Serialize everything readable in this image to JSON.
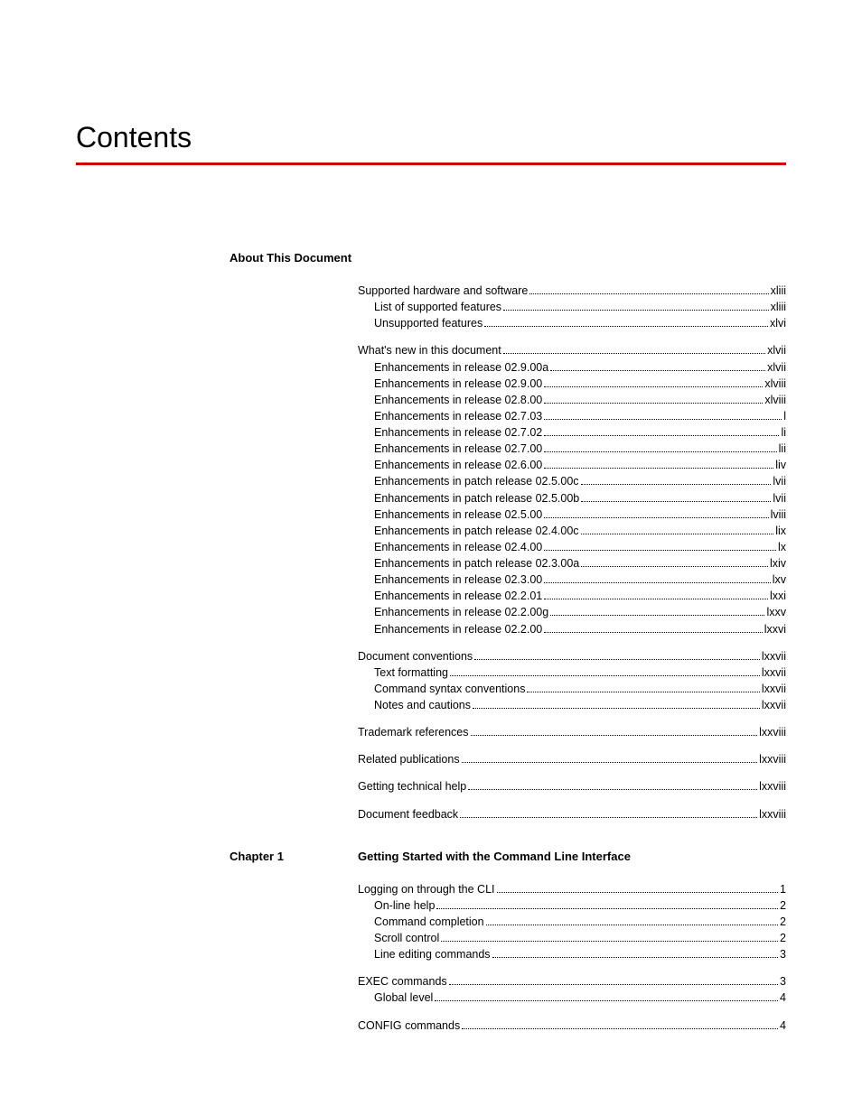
{
  "page_title": "Contents",
  "rule_color": "#cc0000",
  "sections": [
    {
      "chapter_label": "",
      "heading": "About This Document",
      "groups": [
        [
          {
            "level": 1,
            "label": "Supported hardware and software",
            "page": "xliii"
          },
          {
            "level": 2,
            "label": "List of supported features",
            "page": "xliii"
          },
          {
            "level": 2,
            "label": "Unsupported features",
            "page": "xlvi"
          }
        ],
        [
          {
            "level": 1,
            "label": "What's new in this document",
            "page": "xlvii"
          },
          {
            "level": 2,
            "label": "Enhancements in release 02.9.00a",
            "page": "xlvii"
          },
          {
            "level": 2,
            "label": "Enhancements in release 02.9.00",
            "page": "xlviii"
          },
          {
            "level": 2,
            "label": "Enhancements in release 02.8.00",
            "page": "xlviii"
          },
          {
            "level": 2,
            "label": "Enhancements in release 02.7.03",
            "page": "l"
          },
          {
            "level": 2,
            "label": "Enhancements in release 02.7.02",
            "page": "li"
          },
          {
            "level": 2,
            "label": "Enhancements in release 02.7.00",
            "page": "lii"
          },
          {
            "level": 2,
            "label": "Enhancements in release 02.6.00",
            "page": "liv"
          },
          {
            "level": 2,
            "label": "Enhancements in patch release 02.5.00c",
            "page": "lvii"
          },
          {
            "level": 2,
            "label": "Enhancements in patch release 02.5.00b",
            "page": "lvii"
          },
          {
            "level": 2,
            "label": "Enhancements in release 02.5.00",
            "page": "lviii"
          },
          {
            "level": 2,
            "label": "Enhancements in patch release 02.4.00c",
            "page": "lix"
          },
          {
            "level": 2,
            "label": "Enhancements in release 02.4.00",
            "page": "lx"
          },
          {
            "level": 2,
            "label": "Enhancements in patch release 02.3.00a",
            "page": "lxiv"
          },
          {
            "level": 2,
            "label": "Enhancements in release 02.3.00",
            "page": "lxv"
          },
          {
            "level": 2,
            "label": "Enhancements in release 02.2.01",
            "page": "lxxi"
          },
          {
            "level": 2,
            "label": "Enhancements in release 02.2.00g",
            "page": "lxxv"
          },
          {
            "level": 2,
            "label": "Enhancements in release 02.2.00",
            "page": "lxxvi"
          }
        ],
        [
          {
            "level": 1,
            "label": "Document conventions",
            "page": "lxxvii"
          },
          {
            "level": 2,
            "label": "Text formatting",
            "page": "lxxvii"
          },
          {
            "level": 2,
            "label": "Command syntax conventions",
            "page": "lxxvii"
          },
          {
            "level": 2,
            "label": "Notes and cautions",
            "page": "lxxvii"
          }
        ],
        [
          {
            "level": 1,
            "label": "Trademark references",
            "page": "lxxviii"
          }
        ],
        [
          {
            "level": 1,
            "label": "Related publications",
            "page": "lxxviii"
          }
        ],
        [
          {
            "level": 1,
            "label": "Getting technical help",
            "page": "lxxviii"
          }
        ],
        [
          {
            "level": 1,
            "label": "Document feedback",
            "page": "lxxviii"
          }
        ]
      ]
    },
    {
      "chapter_label": "Chapter 1",
      "heading": "Getting Started with the Command Line Interface",
      "groups": [
        [
          {
            "level": 1,
            "label": "Logging on through the CLI",
            "page": "1"
          },
          {
            "level": 2,
            "label": "On-line help",
            "page": "2"
          },
          {
            "level": 2,
            "label": "Command completion",
            "page": "2"
          },
          {
            "level": 2,
            "label": "Scroll control",
            "page": "2"
          },
          {
            "level": 2,
            "label": "Line editing commands",
            "page": "3"
          }
        ],
        [
          {
            "level": 1,
            "label": "EXEC commands",
            "page": "3"
          },
          {
            "level": 2,
            "label": "Global level",
            "page": "4"
          }
        ],
        [
          {
            "level": 1,
            "label": "CONFIG commands",
            "page": "4"
          }
        ]
      ]
    }
  ]
}
